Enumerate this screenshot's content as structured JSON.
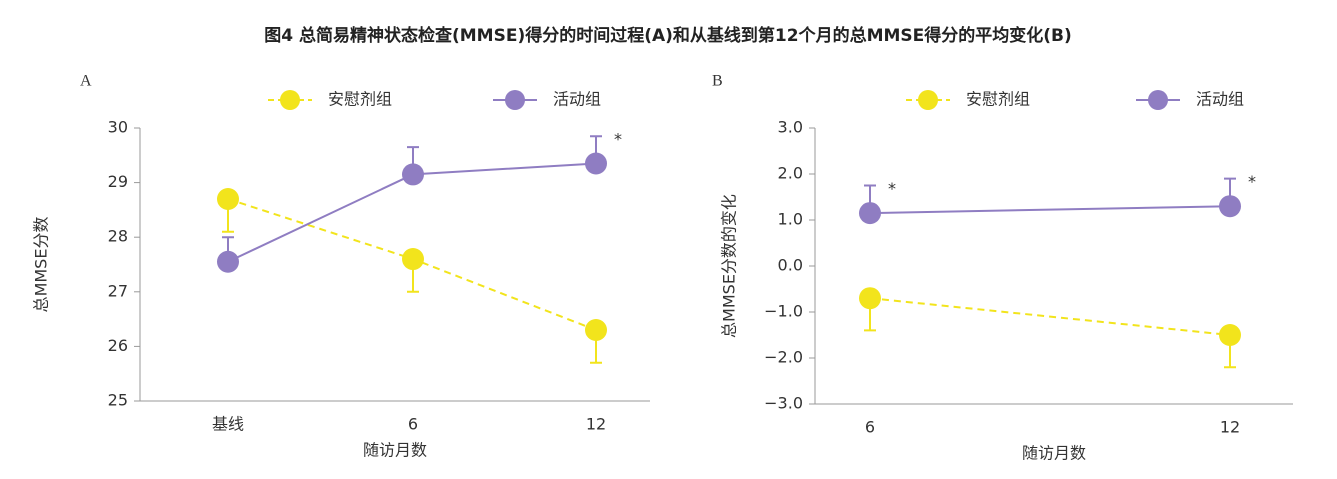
{
  "title": "图4 总简易精神状态检查(MMSE)得分的时间过程(A)和从基线到第12个月的总MMSE得分的平均变化(B)",
  "chart_data": [
    {
      "type": "line",
      "panel": "A",
      "categories": [
        "基线",
        "6",
        "12"
      ],
      "series": [
        {
          "name": "安慰剂组",
          "color": "#f2e41c",
          "dashed": true,
          "values": [
            28.7,
            27.6,
            26.3
          ],
          "errors": [
            0.6,
            0.6,
            0.6
          ],
          "error_direction": "down"
        },
        {
          "name": "活动组",
          "color": "#8f7dc2",
          "dashed": false,
          "values": [
            27.55,
            29.15,
            29.35
          ],
          "errors": [
            0.45,
            0.5,
            0.5
          ],
          "error_direction": "up"
        }
      ],
      "annotations": [
        {
          "text": "*",
          "series": "活动组",
          "category": "12"
        }
      ],
      "ylim": [
        25,
        30
      ],
      "yticks": [
        25,
        26,
        27,
        28,
        29,
        30
      ],
      "x_label": "随访月数",
      "y_label": "总MMSE分数"
    },
    {
      "type": "line",
      "panel": "B",
      "categories": [
        "6",
        "12"
      ],
      "series": [
        {
          "name": "安慰剂组",
          "color": "#f2e41c",
          "dashed": true,
          "values": [
            -0.7,
            -1.5
          ],
          "errors": [
            0.7,
            0.7
          ],
          "error_direction": "down"
        },
        {
          "name": "活动组",
          "color": "#8f7dc2",
          "dashed": false,
          "values": [
            1.15,
            1.3
          ],
          "errors": [
            0.6,
            0.6
          ],
          "error_direction": "up"
        }
      ],
      "annotations": [
        {
          "text": "*",
          "series": "活动组",
          "category": "6"
        },
        {
          "text": "*",
          "series": "活动组",
          "category": "12"
        }
      ],
      "ylim": [
        -3,
        3
      ],
      "yticks": [
        {
          "value": -3,
          "label": "−3.0"
        },
        {
          "value": -2,
          "label": "−2.0"
        },
        {
          "value": -1,
          "label": "−1.0"
        },
        {
          "value": 0,
          "label": "0.0"
        },
        {
          "value": 1,
          "label": "1.0"
        },
        {
          "value": 2,
          "label": "2.0"
        },
        {
          "value": 3,
          "label": "3.0"
        }
      ],
      "x_label": "随访月数",
      "y_label": "总MMSE分数的变化"
    }
  ]
}
